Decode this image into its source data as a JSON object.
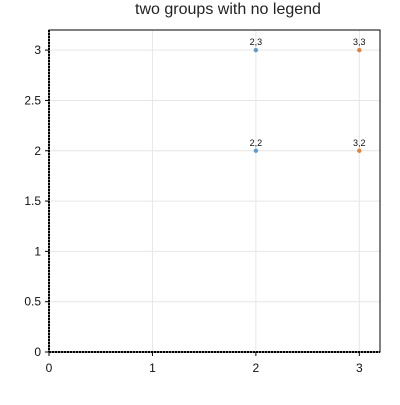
{
  "chart_data": {
    "type": "scatter",
    "title": "two groups with no legend",
    "xlabel": "",
    "ylabel": "",
    "xlim": [
      0,
      3.2
    ],
    "ylim": [
      0,
      3.2
    ],
    "grid": true,
    "legend": "none",
    "x_ticks": [
      "0",
      "1",
      "2",
      "3"
    ],
    "y_ticks": [
      "0",
      "0.5",
      "1",
      "1.5",
      "2",
      "2.5",
      "3"
    ],
    "series": [
      {
        "color": "#5b9bd5",
        "points": [
          {
            "x": 2,
            "y": 2,
            "label": "2,2"
          },
          {
            "x": 2,
            "y": 3,
            "label": "2,3"
          }
        ]
      },
      {
        "color": "#ed7d31",
        "points": [
          {
            "x": 3,
            "y": 2,
            "label": "3,2"
          },
          {
            "x": 3,
            "y": 3,
            "label": "3,3"
          }
        ]
      }
    ]
  }
}
